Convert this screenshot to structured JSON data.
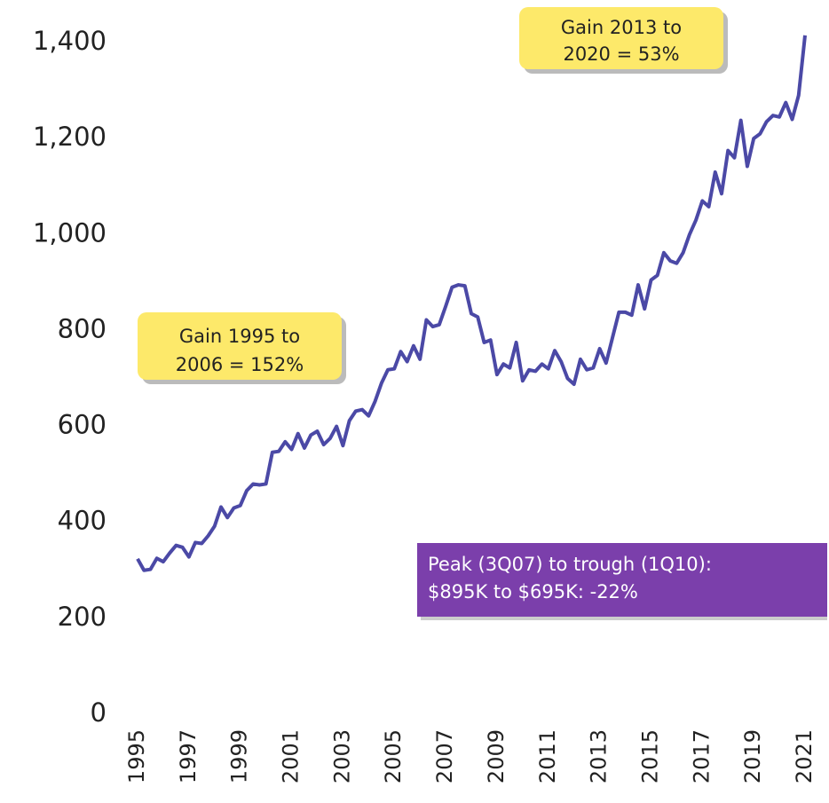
{
  "chart_data": {
    "type": "line",
    "x": [
      1995,
      1995.25,
      1995.5,
      1995.75,
      1996,
      1996.25,
      1996.5,
      1996.75,
      1997,
      1997.25,
      1997.5,
      1997.75,
      1998,
      1998.25,
      1998.5,
      1998.75,
      1999,
      1999.25,
      1999.5,
      1999.75,
      2000,
      2000.25,
      2000.5,
      2000.75,
      2001,
      2001.25,
      2001.5,
      2001.75,
      2002,
      2002.25,
      2002.5,
      2002.75,
      2003,
      2003.25,
      2003.5,
      2003.75,
      2004,
      2004.25,
      2004.5,
      2004.75,
      2005,
      2005.25,
      2005.5,
      2005.75,
      2006,
      2006.25,
      2006.5,
      2006.75,
      2007,
      2007.25,
      2007.5,
      2007.75,
      2008,
      2008.25,
      2008.5,
      2008.75,
      2009,
      2009.25,
      2009.5,
      2009.75,
      2010,
      2010.25,
      2010.5,
      2010.75,
      2011,
      2011.25,
      2011.5,
      2011.75,
      2012,
      2012.25,
      2012.5,
      2012.75,
      2013,
      2013.25,
      2013.5,
      2013.75,
      2014,
      2014.25,
      2014.5,
      2014.75,
      2015,
      2015.25,
      2015.5,
      2015.75,
      2016,
      2016.25,
      2016.5,
      2016.75,
      2017,
      2017.25,
      2017.5,
      2017.75,
      2018,
      2018.25,
      2018.5,
      2018.75,
      2019,
      2019.25,
      2019.5,
      2019.75,
      2020,
      2020.25,
      2020.5,
      2020.75,
      2021
    ],
    "series": [
      {
        "color": "#4b49a6",
        "values": [
          324,
          300,
          302,
          325,
          318,
          336,
          352,
          348,
          328,
          358,
          356,
          372,
          392,
          432,
          410,
          430,
          435,
          466,
          480,
          478,
          480,
          546,
          548,
          568,
          552,
          585,
          555,
          582,
          590,
          562,
          575,
          600,
          560,
          612,
          632,
          635,
          622,
          652,
          690,
          718,
          720,
          756,
          735,
          768,
          740,
          822,
          808,
          812,
          850,
          890,
          895,
          893,
          835,
          828,
          775,
          780,
          708,
          730,
          722,
          775,
          695,
          718,
          715,
          730,
          720,
          758,
          735,
          700,
          688,
          740,
          718,
          722,
          762,
          732,
          785,
          838,
          838,
          832,
          895,
          845,
          905,
          915,
          962,
          945,
          940,
          962,
          1000,
          1030,
          1070,
          1058,
          1130,
          1085,
          1175,
          1160,
          1238,
          1142,
          1200,
          1210,
          1235,
          1248,
          1245,
          1275,
          1240,
          1290,
          1415
        ]
      }
    ],
    "xlim": [
      1995,
      2021
    ],
    "xticks": [
      1995,
      1997,
      1999,
      2001,
      2003,
      2005,
      2007,
      2009,
      2011,
      2013,
      2015,
      2017,
      2019,
      2021
    ],
    "ylim": [
      0,
      1400
    ],
    "yticks": [
      0,
      200,
      400,
      600,
      800,
      {
        "value": 1000,
        "label": "1,000"
      },
      {
        "value": 1200,
        "label": "1,200"
      },
      {
        "value": 1400,
        "label": "1,400"
      }
    ],
    "annotations": [
      {
        "lines": [
          "Gain 2013 to",
          "2020 = 53%"
        ],
        "color": "#fde96a"
      },
      {
        "lines": [
          "Gain 1995 to",
          "2006 = 152%"
        ],
        "color": "#fde96a"
      },
      {
        "lines": [
          "Peak (3Q07) to trough (1Q10):",
          "$895K to $695K: -22%"
        ],
        "color": "#7b3fab"
      }
    ]
  }
}
